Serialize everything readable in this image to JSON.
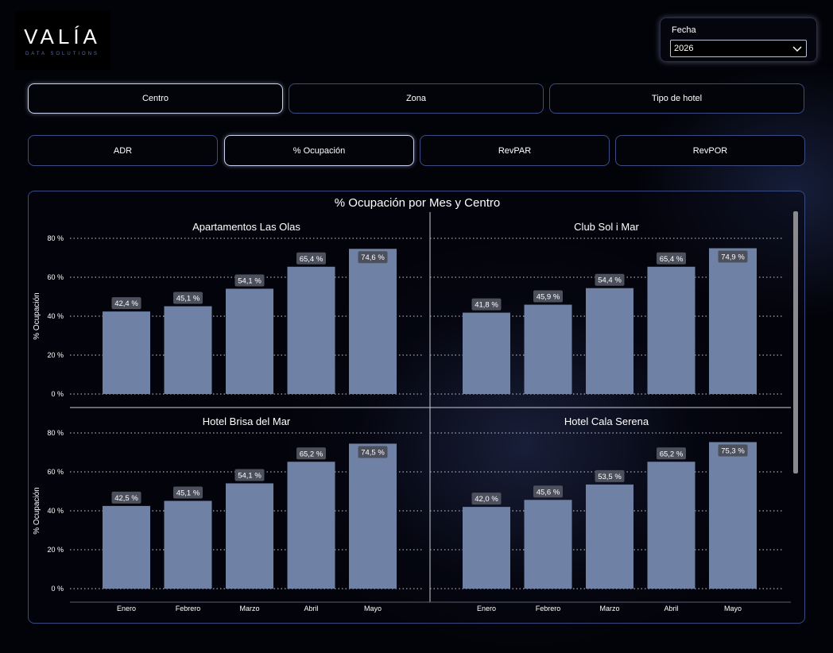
{
  "logo": {
    "main": "VALÍA",
    "sub": "DATA SOLUTIONS"
  },
  "date_filter": {
    "label": "Fecha",
    "value": "2026",
    "icon": "chevron-down-icon"
  },
  "dimension_buttons": [
    {
      "label": "Centro",
      "active": true
    },
    {
      "label": "Zona",
      "active": false
    },
    {
      "label": "Tipo de hotel",
      "active": false
    }
  ],
  "metric_buttons": [
    {
      "label": "ADR",
      "active": false
    },
    {
      "label": "% Ocupación",
      "active": true
    },
    {
      "label": "RevPAR",
      "active": false
    },
    {
      "label": "RevPOR",
      "active": false
    }
  ],
  "colors": {
    "bar": "#6f82a6",
    "label_bg": "#4c4f5c",
    "accent_border": "#3e4c84"
  },
  "chart_data": {
    "type": "bar",
    "title": "% Ocupación por Mes y Centro",
    "ylabel": "% Ocupación",
    "ylim": [
      0,
      80
    ],
    "yticks": [
      "0 %",
      "20 %",
      "40 %",
      "60 %",
      "80 %"
    ],
    "grid": true,
    "categories": [
      "Enero",
      "Febrero",
      "Marzo",
      "Abril",
      "Mayo"
    ],
    "panels": [
      {
        "name": "Apartamentos Las Olas",
        "values": [
          42.4,
          45.1,
          54.1,
          65.4,
          74.6
        ],
        "labels": [
          "42,4 %",
          "45,1 %",
          "54,1 %",
          "65,4 %",
          "74,6 %"
        ]
      },
      {
        "name": "Club Sol i Mar",
        "values": [
          41.8,
          45.9,
          54.4,
          65.4,
          74.9
        ],
        "labels": [
          "41,8 %",
          "45,9 %",
          "54,4 %",
          "65,4 %",
          "74,9 %"
        ]
      },
      {
        "name": "Hotel Brisa del Mar",
        "values": [
          42.5,
          45.1,
          54.1,
          65.2,
          74.5
        ],
        "labels": [
          "42,5 %",
          "45,1 %",
          "54,1 %",
          "65,2 %",
          "74,5 %"
        ]
      },
      {
        "name": "Hotel Cala Serena",
        "values": [
          42.0,
          45.6,
          53.5,
          65.2,
          75.3
        ],
        "labels": [
          "42,0 %",
          "45,6 %",
          "53,5 %",
          "65,2 %",
          "75,3 %"
        ]
      }
    ]
  }
}
